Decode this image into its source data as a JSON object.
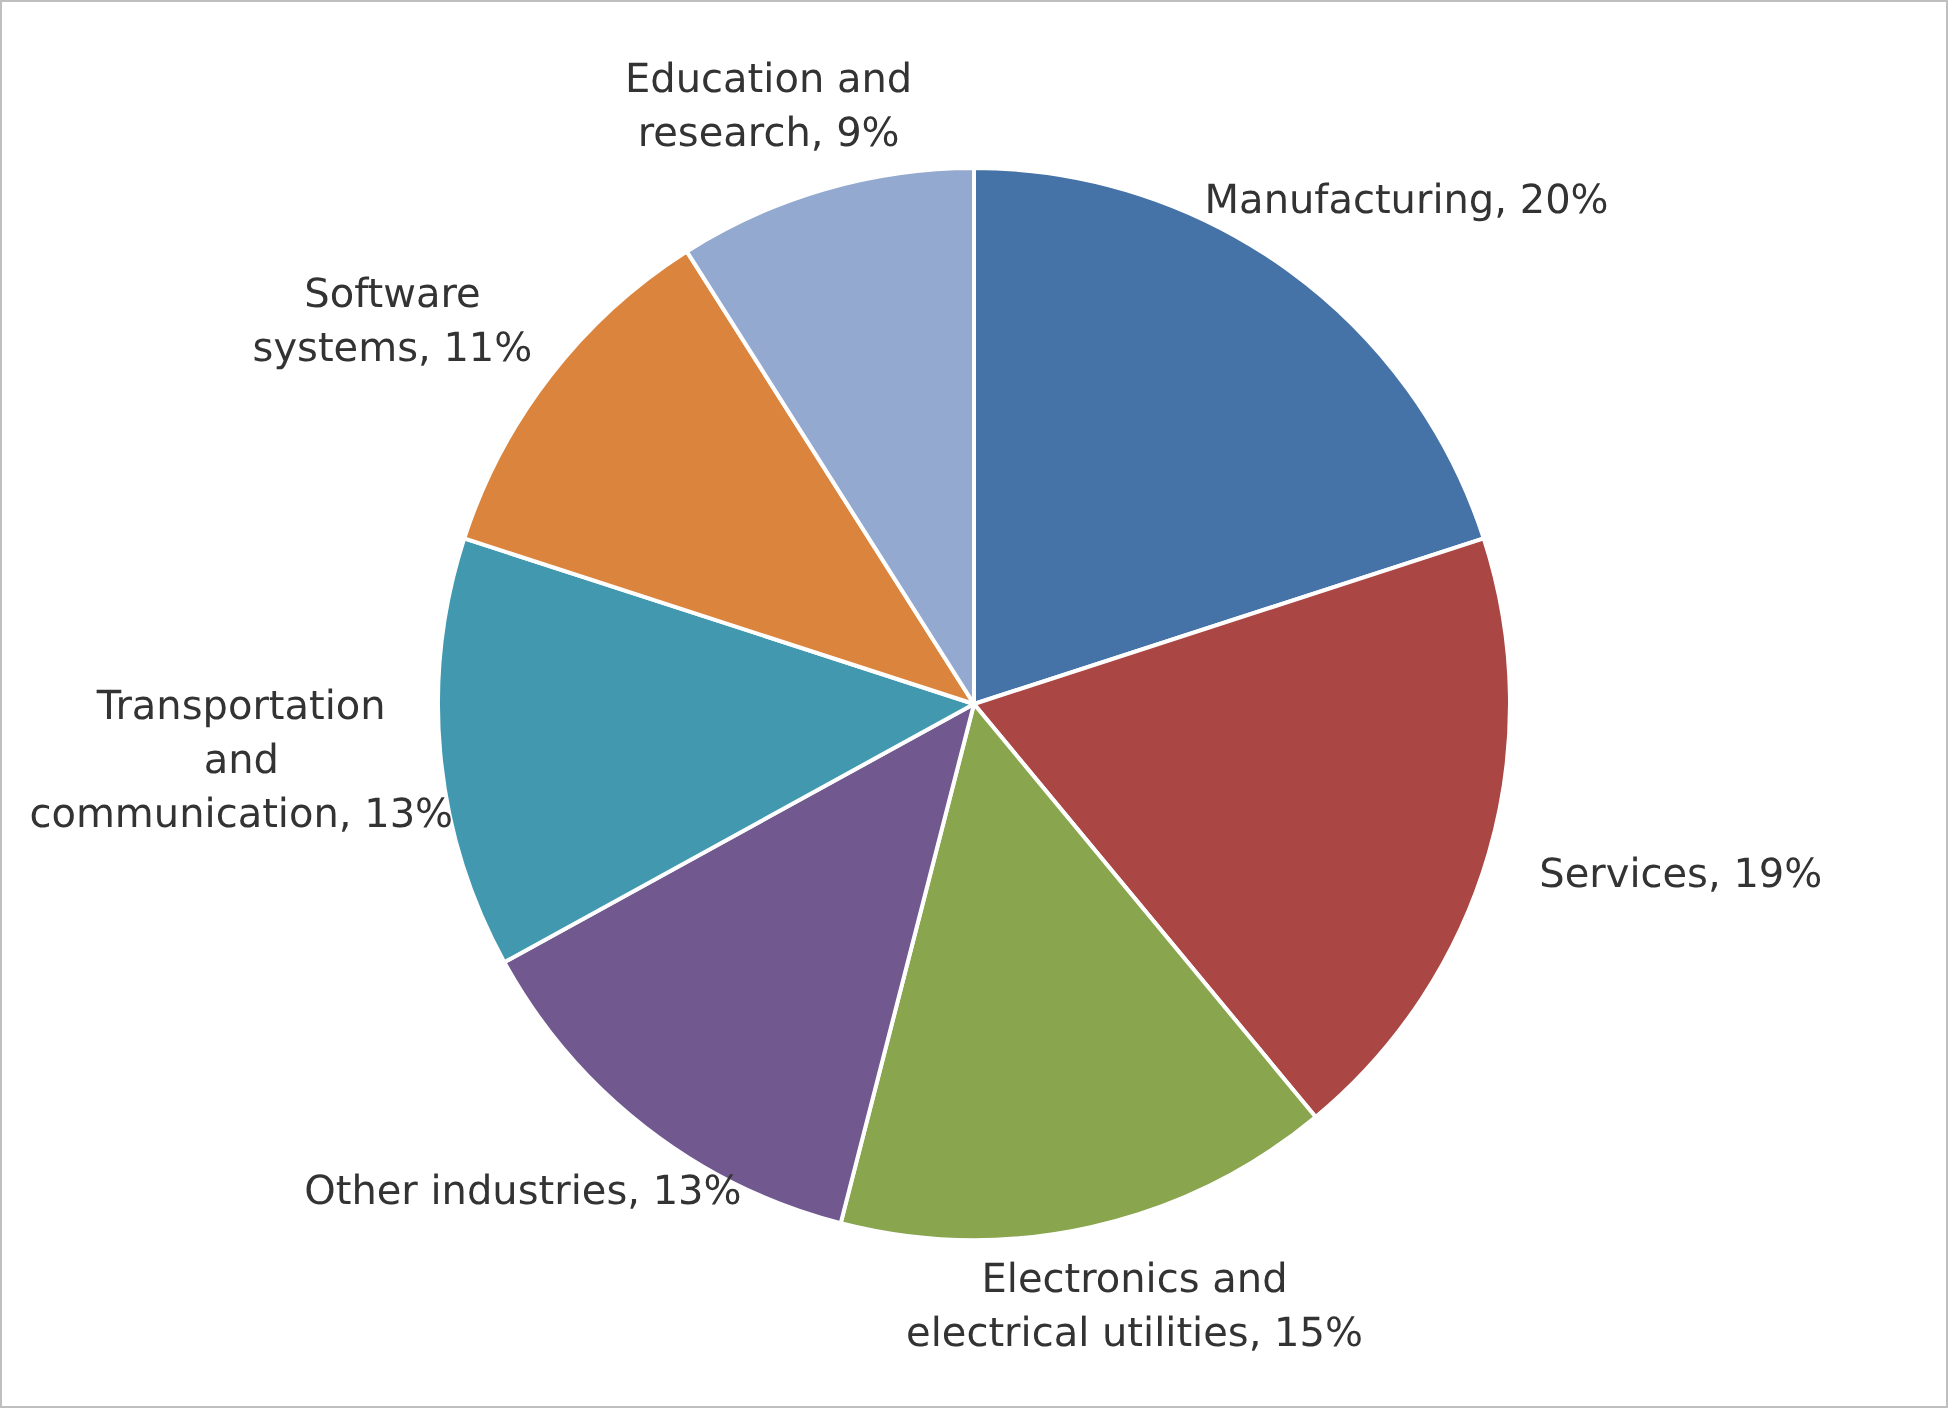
{
  "chart_data": {
    "type": "pie",
    "categories": [
      "Manufacturing",
      "Services",
      "Electronics and electrical utilities",
      "Other industries",
      "Transportation and communication",
      "Software systems",
      "Education and research"
    ],
    "values": [
      20,
      19,
      15,
      13,
      13,
      11,
      9
    ],
    "value_labels": [
      "20%",
      "19%",
      "15%",
      "13%",
      "13%",
      "11%",
      "9%"
    ],
    "colors": [
      "#4572a7",
      "#aa4643",
      "#89a54e",
      "#71588f",
      "#4198af",
      "#db843d",
      "#93a9cf"
    ],
    "legend": false
  }
}
